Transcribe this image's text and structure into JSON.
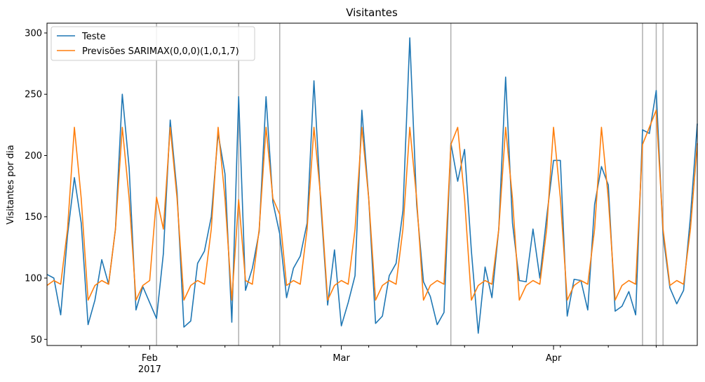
{
  "chart_data": {
    "type": "line",
    "title": "Visitantes",
    "ylabel": "Visitantes por dia",
    "xlabel": "",
    "x_start": "2017-01-17",
    "x_end": "2017-04-22",
    "ylim": [
      45,
      308
    ],
    "yticks": [
      50,
      100,
      150,
      200,
      250,
      300
    ],
    "major_ticks": [
      {
        "date": "2017-02-01",
        "label": "Feb",
        "sublabel": "2017"
      },
      {
        "date": "2017-03-01",
        "label": "Mar",
        "sublabel": ""
      },
      {
        "date": "2017-04-01",
        "label": "Apr",
        "sublabel": ""
      }
    ],
    "minor_ticks": [
      "2017-01-22",
      "2017-01-29",
      "2017-02-05",
      "2017-02-12",
      "2017-02-19",
      "2017-02-26",
      "2017-03-05",
      "2017-03-12",
      "2017-03-19",
      "2017-03-26",
      "2017-04-02",
      "2017-04-09",
      "2017-04-16"
    ],
    "vlines": [
      "2017-02-02",
      "2017-02-14",
      "2017-02-20",
      "2017-03-17",
      "2017-04-14",
      "2017-04-16",
      "2017-04-17"
    ],
    "vline_color": "#b0b0b0",
    "legend_position": "top-left",
    "series": [
      {
        "name": "Teste",
        "color": "#1f77b4",
        "values": [
          103,
          100,
          70,
          135,
          182,
          145,
          62,
          82,
          115,
          95,
          140,
          250,
          190,
          74,
          93,
          80,
          67,
          120,
          229,
          170,
          60,
          65,
          112,
          122,
          150,
          218,
          185,
          64,
          248,
          90,
          108,
          138,
          248,
          162,
          136,
          84,
          108,
          118,
          145,
          261,
          160,
          78,
          123,
          61,
          80,
          102,
          237,
          165,
          63,
          69,
          102,
          112,
          155,
          296,
          160,
          97,
          85,
          62,
          72,
          210,
          179,
          205,
          122,
          55,
          109,
          84,
          140,
          264,
          145,
          98,
          97,
          140,
          100,
          150,
          196,
          196,
          69,
          99,
          98,
          74,
          160,
          191,
          176,
          73,
          77,
          89,
          70,
          221,
          218,
          253,
          135,
          92,
          79,
          90,
          150,
          226
        ]
      },
      {
        "name": "Previsões SARIMAX(0,0,0)(1,0,1,7)",
        "color": "#ff7f0e",
        "values": [
          94,
          98,
          95,
          140,
          223,
          165,
          82,
          94,
          98,
          95,
          140,
          223,
          165,
          82,
          94,
          98,
          166,
          140,
          223,
          165,
          82,
          94,
          98,
          95,
          140,
          223,
          165,
          82,
          164,
          98,
          95,
          140,
          223,
          165,
          152,
          94,
          98,
          95,
          140,
          223,
          165,
          82,
          94,
          98,
          95,
          140,
          223,
          165,
          82,
          94,
          98,
          95,
          140,
          223,
          165,
          82,
          94,
          98,
          95,
          209,
          223,
          165,
          82,
          94,
          98,
          95,
          140,
          223,
          165,
          82,
          94,
          98,
          95,
          140,
          223,
          165,
          82,
          94,
          98,
          95,
          140,
          223,
          165,
          82,
          94,
          98,
          95,
          209,
          223,
          237,
          140,
          94,
          98,
          95,
          140,
          210
        ]
      }
    ]
  }
}
